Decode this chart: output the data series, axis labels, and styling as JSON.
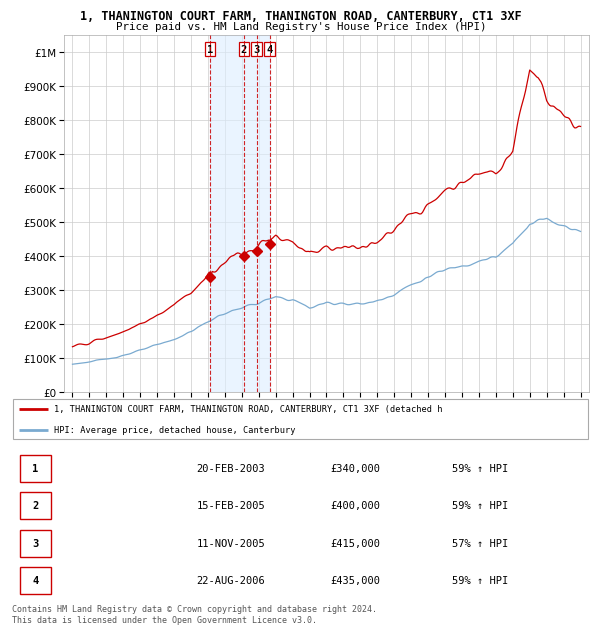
{
  "title1": "1, THANINGTON COURT FARM, THANINGTON ROAD, CANTERBURY, CT1 3XF",
  "title2": "Price paid vs. HM Land Registry's House Price Index (HPI)",
  "bg_color": "#ffffff",
  "grid_color": "#cccccc",
  "red_color": "#cc0000",
  "blue_color": "#7aaad0",
  "sale_dates_num": [
    2003.13,
    2005.12,
    2005.87,
    2006.64
  ],
  "sale_prices": [
    340000,
    400000,
    415000,
    435000
  ],
  "sale_labels": [
    "1",
    "2",
    "3",
    "4"
  ],
  "legend_red": "1, THANINGTON COURT FARM, THANINGTON ROAD, CANTERBURY, CT1 3XF (detached h",
  "legend_blue": "HPI: Average price, detached house, Canterbury",
  "table_rows": [
    [
      "1",
      "20-FEB-2003",
      "£340,000",
      "59% ↑ HPI"
    ],
    [
      "2",
      "15-FEB-2005",
      "£400,000",
      "59% ↑ HPI"
    ],
    [
      "3",
      "11-NOV-2005",
      "£415,000",
      "57% ↑ HPI"
    ],
    [
      "4",
      "22-AUG-2006",
      "£435,000",
      "59% ↑ HPI"
    ]
  ],
  "footer": "Contains HM Land Registry data © Crown copyright and database right 2024.\nThis data is licensed under the Open Government Licence v3.0.",
  "ylim_max": 1050000,
  "xmin": 1994.5,
  "xmax": 2025.5
}
